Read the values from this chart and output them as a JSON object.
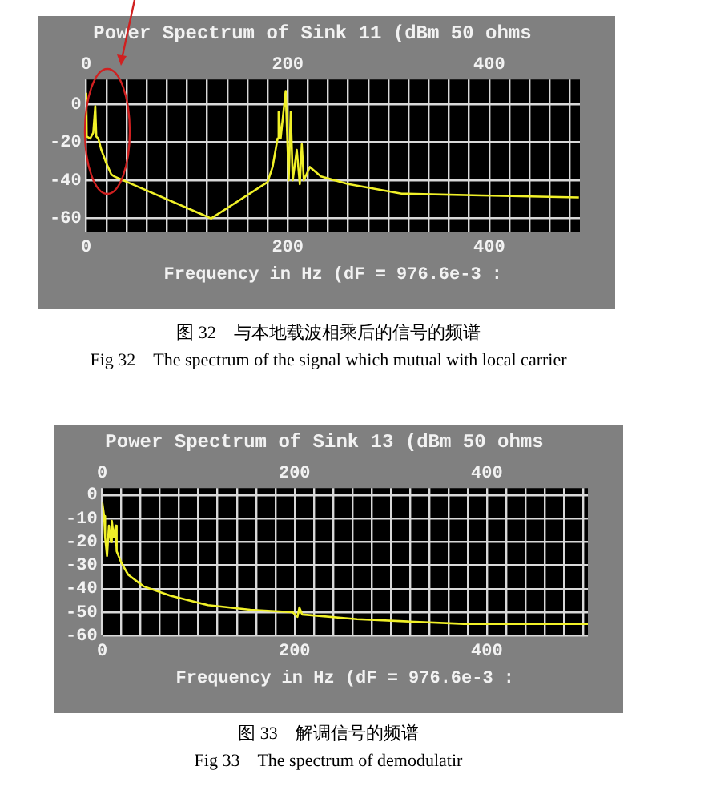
{
  "chart_data": [
    {
      "type": "line",
      "title": "Power Spectrum of Sink 11 (dBm 50 ohms",
      "xlabel": "Frequency in Hz (dF = 976.6e-3 :",
      "x": [
        0,
        0.5,
        4,
        7,
        9,
        10,
        12,
        15,
        20,
        25,
        28,
        124,
        180,
        185,
        190,
        191,
        193,
        198,
        201,
        203,
        205,
        209,
        212,
        214,
        216,
        222,
        233,
        260,
        313,
        393,
        489
      ],
      "series": [
        {
          "color": "#f0f028",
          "values": [
            6,
            -17,
            -18,
            -15,
            -1,
            -17,
            -18,
            -24,
            -31,
            -37,
            -38,
            -60,
            -41,
            -33,
            -18,
            -4,
            -18,
            7,
            -40,
            -4,
            -40,
            -24,
            -42,
            -21,
            -40,
            -33,
            -38,
            -42,
            -47,
            -48,
            -49
          ]
        }
      ],
      "xlim": [
        0,
        490
      ],
      "ylim": [
        -67,
        13
      ],
      "yticks": [
        0,
        -20,
        -40,
        -60
      ],
      "xticks": [
        0,
        {
          "value": 20,
          "label": null
        },
        {
          "value": 40,
          "label": null
        },
        {
          "value": 60,
          "label": null
        },
        {
          "value": 80,
          "label": null
        },
        {
          "value": 100,
          "label": null
        },
        {
          "value": 120,
          "label": null
        },
        {
          "value": 140,
          "label": null
        },
        {
          "value": 160,
          "label": null
        },
        {
          "value": 180,
          "label": null
        },
        200,
        {
          "value": 220,
          "label": null
        },
        {
          "value": 240,
          "label": null
        },
        {
          "value": 260,
          "label": null
        },
        {
          "value": 280,
          "label": null
        },
        {
          "value": 300,
          "label": null
        },
        {
          "value": 320,
          "label": null
        },
        {
          "value": 340,
          "label": null
        },
        {
          "value": 360,
          "label": null
        },
        {
          "value": 380,
          "label": null
        },
        400,
        {
          "value": 420,
          "label": null
        },
        {
          "value": 440,
          "label": null
        },
        {
          "value": 460,
          "label": null
        },
        {
          "value": 480,
          "label": null
        }
      ],
      "x2lim": [
        0,
        490
      ],
      "x2ticks": [
        0,
        200,
        400
      ],
      "grid": true,
      "annotations": [
        "图 32　与本地载波相乘后的信号的频谱",
        "Fig 32　The spectrum of the signal which mutual with local carrier"
      ]
    },
    {
      "type": "line",
      "title": "Power Spectrum of Sink 13 (dBm 50 ohms",
      "xlabel": "Frequency in Hz (dF = 976.6e-3 :",
      "x": [
        0,
        2,
        3,
        5,
        7,
        9,
        10,
        12,
        14,
        15,
        20,
        27,
        43,
        71,
        110,
        154,
        198,
        203,
        205,
        208,
        265,
        320,
        376,
        431,
        505
      ],
      "series": [
        {
          "color": "#f0f028",
          "values": [
            -3,
            -9,
            -18,
            -26,
            -13,
            -20,
            -11,
            -18,
            -13,
            -24,
            -29,
            -34,
            -39,
            -43,
            -47,
            -49,
            -50,
            -52,
            -48,
            -51,
            -53,
            -54,
            -55,
            -55,
            -55
          ]
        }
      ],
      "xlim": [
        0,
        505
      ],
      "ylim": [
        -60,
        3
      ],
      "yticks": [
        0,
        -10,
        -20,
        -30,
        -40,
        -50,
        -60
      ],
      "xticks": [
        0,
        {
          "value": 20,
          "label": null
        },
        {
          "value": 40,
          "label": null
        },
        {
          "value": 60,
          "label": null
        },
        {
          "value": 80,
          "label": null
        },
        {
          "value": 100,
          "label": null
        },
        {
          "value": 120,
          "label": null
        },
        {
          "value": 140,
          "label": null
        },
        {
          "value": 160,
          "label": null
        },
        {
          "value": 180,
          "label": null
        },
        200,
        {
          "value": 220,
          "label": null
        },
        {
          "value": 240,
          "label": null
        },
        {
          "value": 260,
          "label": null
        },
        {
          "value": 280,
          "label": null
        },
        {
          "value": 300,
          "label": null
        },
        {
          "value": 320,
          "label": null
        },
        {
          "value": 340,
          "label": null
        },
        {
          "value": 360,
          "label": null
        },
        {
          "value": 380,
          "label": null
        },
        400,
        {
          "value": 420,
          "label": null
        },
        {
          "value": 440,
          "label": null
        },
        {
          "value": 460,
          "label": null
        },
        {
          "value": 480,
          "label": null
        },
        {
          "value": 500,
          "label": null
        }
      ],
      "x2lim": [
        0,
        505
      ],
      "x2ticks": [
        0,
        200,
        400
      ],
      "grid": true,
      "annotations": [
        "图 33　解调信号的频谱",
        "Fig 33　The spectrum of demodulatir"
      ]
    }
  ]
}
